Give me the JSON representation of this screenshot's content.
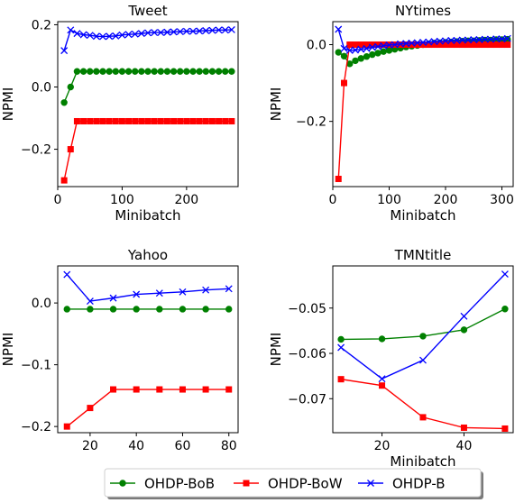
{
  "colors": {
    "OHDP-BoB": "#008000",
    "OHDP-BoW": "#ff0000",
    "OHDP-B": "#0000ff"
  },
  "legend": {
    "placement": "bottom-center",
    "entries": [
      {
        "name": "OHDP-BoB",
        "marker": "circle"
      },
      {
        "name": "OHDP-BoW",
        "marker": "square"
      },
      {
        "name": "OHDP-B",
        "marker": "x"
      }
    ]
  },
  "chart_data": [
    {
      "type": "line",
      "title": "Tweet",
      "xlabel": "Minibatch",
      "ylabel": "NPMI",
      "xlim": [
        0,
        280
      ],
      "ylim": [
        -0.32,
        0.21
      ],
      "xticks": [
        0,
        100,
        200
      ],
      "xtick_labels": [
        "0",
        "100",
        "200"
      ],
      "yticks": [
        -0.2,
        0.0,
        0.2
      ],
      "ytick_labels": [
        "−0.2",
        "0.0",
        "0.2"
      ],
      "series": [
        {
          "name": "OHDP-BoB",
          "x": [
            10,
            20,
            30,
            40,
            50,
            60,
            70,
            80,
            90,
            100,
            110,
            120,
            130,
            140,
            150,
            160,
            170,
            180,
            190,
            200,
            210,
            220,
            230,
            240,
            250,
            260,
            270
          ],
          "y": [
            -0.05,
            0.0,
            0.05,
            0.05,
            0.05,
            0.05,
            0.05,
            0.05,
            0.05,
            0.05,
            0.05,
            0.05,
            0.05,
            0.05,
            0.05,
            0.05,
            0.05,
            0.05,
            0.05,
            0.05,
            0.05,
            0.05,
            0.05,
            0.05,
            0.05,
            0.05,
            0.05
          ]
        },
        {
          "name": "OHDP-BoW",
          "x": [
            10,
            20,
            30,
            40,
            50,
            60,
            70,
            80,
            90,
            100,
            110,
            120,
            130,
            140,
            150,
            160,
            170,
            180,
            190,
            200,
            210,
            220,
            230,
            240,
            250,
            260,
            270
          ],
          "y": [
            -0.3,
            -0.2,
            -0.11,
            -0.11,
            -0.11,
            -0.11,
            -0.11,
            -0.11,
            -0.11,
            -0.11,
            -0.11,
            -0.11,
            -0.11,
            -0.11,
            -0.11,
            -0.11,
            -0.11,
            -0.11,
            -0.11,
            -0.11,
            -0.11,
            -0.11,
            -0.11,
            -0.11,
            -0.11,
            -0.11,
            -0.11
          ]
        },
        {
          "name": "OHDP-B",
          "x": [
            10,
            20,
            30,
            40,
            50,
            60,
            70,
            80,
            90,
            100,
            110,
            120,
            130,
            140,
            150,
            160,
            170,
            180,
            190,
            200,
            210,
            220,
            230,
            240,
            250,
            260,
            270
          ],
          "y": [
            0.117,
            0.183,
            0.172,
            0.168,
            0.166,
            0.163,
            0.162,
            0.163,
            0.164,
            0.167,
            0.169,
            0.17,
            0.172,
            0.174,
            0.175,
            0.175,
            0.176,
            0.177,
            0.178,
            0.179,
            0.179,
            0.18,
            0.181,
            0.182,
            0.183,
            0.183,
            0.184
          ]
        }
      ]
    },
    {
      "type": "line",
      "title": "NYtimes",
      "xlabel": "Minibatch",
      "ylabel": "NPMI",
      "xlim": [
        0,
        320
      ],
      "ylim": [
        -0.37,
        0.06
      ],
      "xticks": [
        0,
        100,
        200,
        300
      ],
      "xtick_labels": [
        "0",
        "100",
        "200",
        "300"
      ],
      "yticks": [
        -0.2,
        0.0
      ],
      "ytick_labels": [
        "−0.2",
        "0.0"
      ],
      "series": [
        {
          "name": "OHDP-BoB",
          "x": [
            10,
            20,
            30,
            40,
            50,
            60,
            70,
            80,
            90,
            100,
            110,
            120,
            130,
            140,
            150,
            160,
            170,
            180,
            190,
            200,
            210,
            220,
            230,
            240,
            250,
            260,
            270,
            280,
            290,
            300,
            310
          ],
          "y": [
            -0.02,
            -0.03,
            -0.05,
            -0.042,
            -0.036,
            -0.031,
            -0.026,
            -0.022,
            -0.018,
            -0.015,
            -0.012,
            -0.009,
            -0.006,
            -0.004,
            -0.002,
            0.0,
            0.002,
            0.004,
            0.005,
            0.006,
            0.007,
            0.008,
            0.009,
            0.01,
            0.01,
            0.011,
            0.012,
            0.012,
            0.013,
            0.013,
            0.014
          ]
        },
        {
          "name": "OHDP-BoW",
          "x": [
            10,
            20,
            30,
            40,
            50,
            60,
            70,
            80,
            90,
            100,
            110,
            120,
            130,
            140,
            150,
            160,
            170,
            180,
            190,
            200,
            210,
            220,
            230,
            240,
            250,
            260,
            270,
            280,
            290,
            300,
            310
          ],
          "y": [
            -0.35,
            -0.1,
            0.0,
            0.0,
            0.0,
            0.0,
            0.0,
            0.0,
            0.0,
            0.0,
            0.0,
            0.0,
            0.0,
            0.0,
            0.0,
            0.0,
            0.0,
            0.0,
            0.0,
            0.0,
            0.0,
            0.0,
            0.0,
            0.0,
            0.0,
            0.0,
            0.0,
            0.0,
            0.0,
            0.0,
            0.0
          ]
        },
        {
          "name": "OHDP-B",
          "x": [
            10,
            20,
            30,
            40,
            50,
            60,
            70,
            80,
            90,
            100,
            110,
            120,
            130,
            140,
            150,
            160,
            170,
            180,
            190,
            200,
            210,
            220,
            230,
            240,
            250,
            260,
            270,
            280,
            290,
            300,
            310
          ],
          "y": [
            0.04,
            -0.01,
            -0.015,
            -0.014,
            -0.012,
            -0.01,
            -0.007,
            -0.005,
            -0.003,
            -0.001,
            0.0,
            0.002,
            0.003,
            0.004,
            0.005,
            0.006,
            0.007,
            0.008,
            0.009,
            0.01,
            0.011,
            0.011,
            0.012,
            0.012,
            0.013,
            0.013,
            0.014,
            0.014,
            0.015,
            0.015,
            0.016
          ]
        }
      ]
    },
    {
      "type": "line",
      "title": "Yahoo",
      "xlabel": "",
      "ylabel": "NPMI",
      "xlim": [
        6,
        84
      ],
      "ylim": [
        -0.21,
        0.06
      ],
      "xticks": [
        20,
        40,
        60,
        80
      ],
      "xtick_labels": [
        "20",
        "40",
        "60",
        "80"
      ],
      "yticks": [
        -0.2,
        -0.1,
        0.0
      ],
      "ytick_labels": [
        "−0.2",
        "−0.1",
        "0.0"
      ],
      "series": [
        {
          "name": "OHDP-BoB",
          "x": [
            10,
            20,
            30,
            40,
            50,
            60,
            70,
            80
          ],
          "y": [
            -0.01,
            -0.01,
            -0.01,
            -0.01,
            -0.01,
            -0.01,
            -0.01,
            -0.01
          ]
        },
        {
          "name": "OHDP-BoW",
          "x": [
            10,
            20,
            30,
            40,
            50,
            60,
            70,
            80
          ],
          "y": [
            -0.2,
            -0.17,
            -0.14,
            -0.14,
            -0.14,
            -0.14,
            -0.14,
            -0.14
          ]
        },
        {
          "name": "OHDP-B",
          "x": [
            10,
            20,
            30,
            40,
            50,
            60,
            70,
            80
          ],
          "y": [
            0.046,
            0.003,
            0.008,
            0.014,
            0.016,
            0.018,
            0.021,
            0.023
          ]
        }
      ]
    },
    {
      "type": "line",
      "title": "TMNtitle",
      "xlabel": "Minibatch",
      "ylabel": "NPMI",
      "xlim": [
        8,
        52
      ],
      "ylim": [
        -0.0775,
        -0.0407
      ],
      "xticks": [
        20,
        40
      ],
      "xtick_labels": [
        "20",
        "40"
      ],
      "yticks": [
        -0.07,
        -0.06,
        -0.05
      ],
      "ytick_labels": [
        "−0.07",
        "−0.06",
        "−0.05"
      ],
      "series": [
        {
          "name": "OHDP-BoB",
          "x": [
            10,
            20,
            30,
            40,
            50
          ],
          "y": [
            -0.0569,
            -0.0568,
            -0.0562,
            -0.0548,
            -0.0502
          ]
        },
        {
          "name": "OHDP-BoW",
          "x": [
            10,
            20,
            30,
            40,
            50
          ],
          "y": [
            -0.0657,
            -0.0671,
            -0.0741,
            -0.0764,
            -0.0766
          ]
        },
        {
          "name": "OHDP-B",
          "x": [
            10,
            20,
            30,
            40,
            50
          ],
          "y": [
            -0.0587,
            -0.0656,
            -0.0615,
            -0.0518,
            -0.0425
          ]
        }
      ]
    }
  ]
}
